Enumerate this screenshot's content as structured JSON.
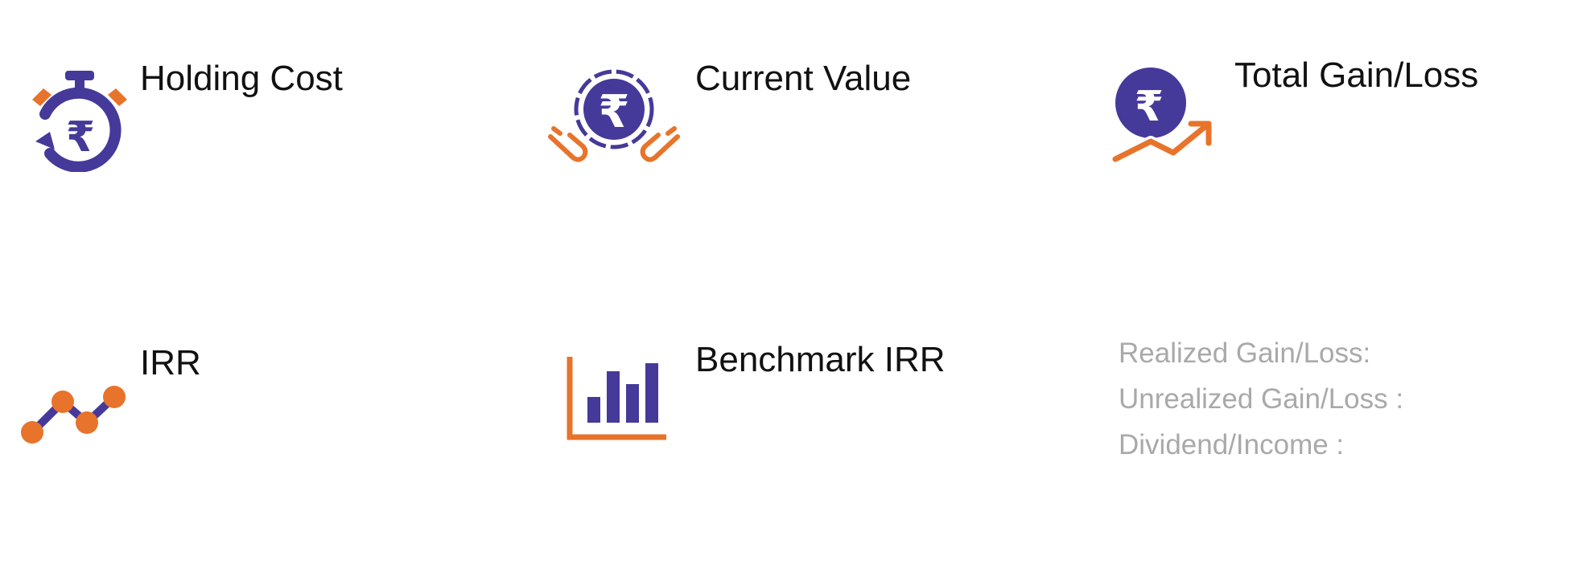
{
  "colors": {
    "primary": "#45399a",
    "accent": "#e8732a",
    "title": "#111111",
    "muted": "#a9a9a9"
  },
  "cards": [
    {
      "title": "Holding Cost",
      "icon": "stopwatch-rupee-icon"
    },
    {
      "title": "Current Value",
      "icon": "hands-rupee-coin-icon"
    },
    {
      "title": "Total Gain/Loss",
      "icon": "rupee-growth-arrow-icon"
    },
    {
      "title": "IRR",
      "icon": "line-trend-icon"
    },
    {
      "title": "Benchmark IRR",
      "icon": "bar-chart-icon"
    }
  ],
  "gain_breakdown": {
    "realized_label": "Realized Gain/Loss:",
    "unrealized_label": "Unrealized Gain/Loss :",
    "dividend_label": "Dividend/Income :"
  }
}
